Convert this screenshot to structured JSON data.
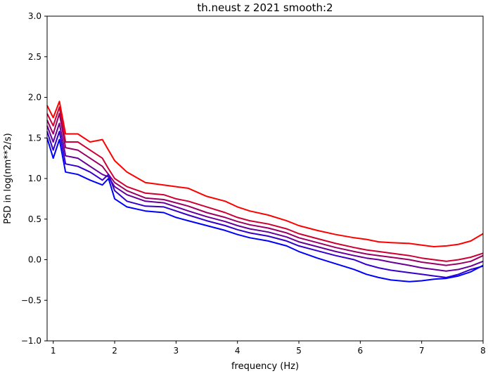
{
  "chart_data": {
    "type": "line",
    "title": "th.neust z 2021 smooth:2",
    "xlabel": "frequency (Hz)",
    "ylabel": "PSD in log(nm**2/s)",
    "xlim": [
      0.9,
      8.0
    ],
    "ylim": [
      -1.0,
      3.0
    ],
    "xticks": [
      1,
      2,
      3,
      4,
      5,
      6,
      7,
      8
    ],
    "yticks": [
      -1.0,
      -0.5,
      0.0,
      0.5,
      1.0,
      1.5,
      2.0,
      2.5,
      3.0
    ],
    "xtick_labels": [
      "1",
      "2",
      "3",
      "4",
      "5",
      "6",
      "7",
      "8"
    ],
    "ytick_labels": [
      "−1.0",
      "−0.5",
      "0.0",
      "0.5",
      "1.0",
      "1.5",
      "2.0",
      "2.5",
      "3.0"
    ],
    "grid": false,
    "legend": "none",
    "x": [
      0.9,
      1.0,
      1.1,
      1.2,
      1.4,
      1.6,
      1.8,
      1.9,
      2.0,
      2.2,
      2.5,
      2.8,
      3.0,
      3.2,
      3.5,
      3.8,
      4.0,
      4.2,
      4.5,
      4.8,
      5.0,
      5.3,
      5.6,
      5.9,
      6.1,
      6.3,
      6.5,
      6.8,
      7.0,
      7.2,
      7.4,
      7.6,
      7.8,
      8.0
    ],
    "series": [
      {
        "color": "#ff0000",
        "values": [
          1.9,
          1.75,
          1.95,
          1.55,
          1.55,
          1.45,
          1.48,
          1.35,
          1.22,
          1.08,
          0.95,
          0.92,
          0.9,
          0.88,
          0.78,
          0.72,
          0.65,
          0.6,
          0.55,
          0.48,
          0.42,
          0.36,
          0.31,
          0.27,
          0.25,
          0.22,
          0.21,
          0.2,
          0.18,
          0.16,
          0.17,
          0.19,
          0.23,
          0.32
        ]
      },
      {
        "color": "#cc0033",
        "values": [
          1.8,
          1.65,
          1.88,
          1.45,
          1.45,
          1.35,
          1.25,
          1.12,
          1.0,
          0.9,
          0.82,
          0.8,
          0.75,
          0.72,
          0.65,
          0.58,
          0.52,
          0.48,
          0.44,
          0.38,
          0.32,
          0.26,
          0.2,
          0.15,
          0.12,
          0.1,
          0.08,
          0.05,
          0.02,
          0.0,
          -0.02,
          0.0,
          0.03,
          0.08
        ]
      },
      {
        "color": "#990066",
        "values": [
          1.72,
          1.55,
          1.8,
          1.38,
          1.35,
          1.25,
          1.15,
          1.05,
          0.95,
          0.85,
          0.76,
          0.74,
          0.7,
          0.66,
          0.58,
          0.52,
          0.47,
          0.43,
          0.39,
          0.33,
          0.27,
          0.21,
          0.15,
          0.1,
          0.07,
          0.05,
          0.03,
          0.0,
          -0.03,
          -0.05,
          -0.07,
          -0.05,
          -0.02,
          0.05
        ]
      },
      {
        "color": "#660099",
        "values": [
          1.65,
          1.45,
          1.68,
          1.28,
          1.25,
          1.15,
          1.05,
          1.02,
          0.9,
          0.8,
          0.72,
          0.7,
          0.65,
          0.6,
          0.53,
          0.47,
          0.42,
          0.38,
          0.34,
          0.28,
          0.22,
          0.16,
          0.1,
          0.05,
          0.02,
          0.0,
          -0.03,
          -0.07,
          -0.1,
          -0.12,
          -0.14,
          -0.12,
          -0.08,
          -0.02
        ]
      },
      {
        "color": "#3300cc",
        "values": [
          1.58,
          1.35,
          1.58,
          1.18,
          1.15,
          1.08,
          0.98,
          1.05,
          0.85,
          0.72,
          0.66,
          0.65,
          0.6,
          0.55,
          0.48,
          0.42,
          0.37,
          0.33,
          0.29,
          0.23,
          0.17,
          0.11,
          0.05,
          0.0,
          -0.06,
          -0.1,
          -0.13,
          -0.16,
          -0.18,
          -0.2,
          -0.22,
          -0.18,
          -0.12,
          -0.08
        ]
      },
      {
        "color": "#0000ff",
        "values": [
          1.5,
          1.25,
          1.48,
          1.08,
          1.05,
          0.98,
          0.92,
          1.0,
          0.75,
          0.65,
          0.6,
          0.58,
          0.52,
          0.48,
          0.42,
          0.36,
          0.31,
          0.27,
          0.23,
          0.17,
          0.1,
          0.02,
          -0.05,
          -0.12,
          -0.18,
          -0.22,
          -0.25,
          -0.27,
          -0.26,
          -0.24,
          -0.23,
          -0.2,
          -0.15,
          -0.07
        ]
      }
    ]
  }
}
